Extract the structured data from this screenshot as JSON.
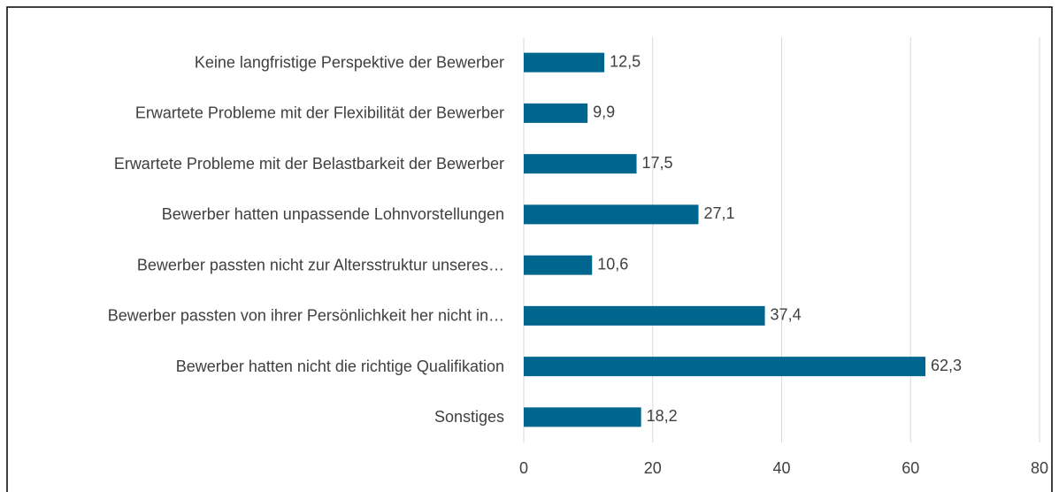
{
  "chart_data": {
    "type": "bar",
    "orientation": "horizontal",
    "categories": [
      "Keine langfristige Perspektive der Bewerber",
      "Erwartete Probleme mit der Flexibilität der Bewerber",
      "Erwartete Probleme mit der Belastbarkeit der Bewerber",
      "Bewerber hatten unpassende Lohnvorstellungen",
      "Bewerber passten nicht zur Altersstruktur unseres…",
      "Bewerber passten von ihrer Persönlichkeit her nicht in…",
      "Bewerber hatten nicht die richtige Qualifikation",
      "Sonstiges"
    ],
    "values": [
      12.5,
      9.9,
      17.5,
      27.1,
      10.6,
      37.4,
      62.3,
      18.2
    ],
    "value_labels": [
      "12,5",
      "9,9",
      "17,5",
      "27,1",
      "10,6",
      "37,4",
      "62,3",
      "18,2"
    ],
    "color": "#00668e",
    "xlim": [
      0,
      80
    ],
    "xticks": [
      0,
      20,
      40,
      60,
      80
    ],
    "grid": true
  }
}
